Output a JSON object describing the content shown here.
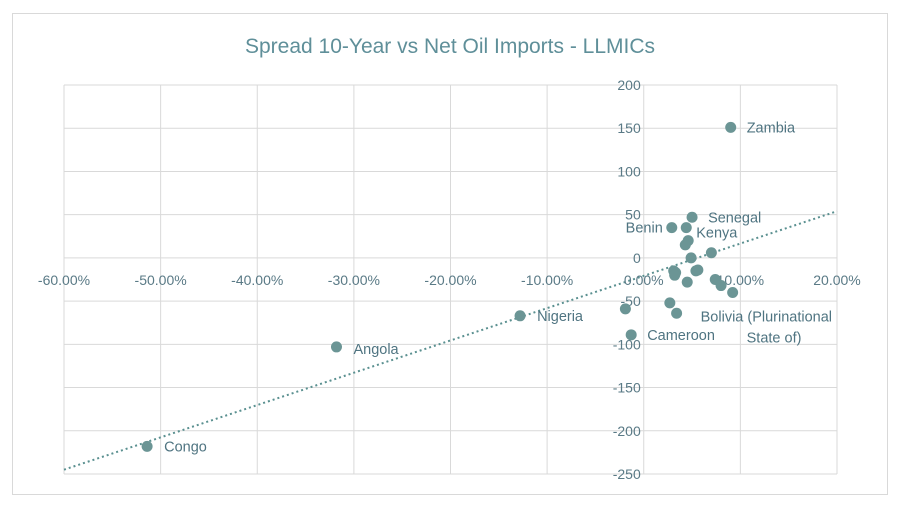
{
  "chart_data": {
    "type": "scatter",
    "title": "Spread 10-Year vs Net Oil Imports - LLMICs",
    "xlabel": "",
    "ylabel": "",
    "xlim": [
      -0.6,
      0.2
    ],
    "ylim": [
      -250,
      200
    ],
    "x_ticks": [
      -0.6,
      -0.5,
      -0.4,
      -0.3,
      -0.2,
      -0.1,
      0.0,
      0.1,
      0.2
    ],
    "x_tick_labels": [
      "-60.00%",
      "-50.00%",
      "-40.00%",
      "-30.00%",
      "-20.00%",
      "-10.00%",
      "0.00%",
      "10.00%",
      "20.00%"
    ],
    "y_ticks": [
      -250,
      -200,
      -150,
      -100,
      -50,
      0,
      50,
      100,
      150,
      200
    ],
    "y_tick_labels": [
      "-250",
      "-200",
      "-150",
      "-100",
      "-50",
      "0",
      "50",
      "100",
      "150",
      "200"
    ],
    "grid": true,
    "point_color": "#6b9595",
    "trendline": {
      "style": "dotted",
      "from": [
        -0.6,
        -245
      ],
      "to": [
        0.2,
        54
      ]
    },
    "points": [
      {
        "x": 0.09,
        "y": 151,
        "label": "Zambia"
      },
      {
        "x": 0.05,
        "y": 47,
        "label": "Senegal"
      },
      {
        "x": 0.029,
        "y": 35,
        "label": "Benin"
      },
      {
        "x": 0.044,
        "y": 35,
        "label": "Kenya"
      },
      {
        "x": 0.046,
        "y": 20,
        "label": ""
      },
      {
        "x": 0.043,
        "y": 15,
        "label": ""
      },
      {
        "x": 0.07,
        "y": 6,
        "label": ""
      },
      {
        "x": 0.049,
        "y": 0,
        "label": ""
      },
      {
        "x": 0.031,
        "y": -15,
        "label": ""
      },
      {
        "x": 0.033,
        "y": -17,
        "label": ""
      },
      {
        "x": 0.054,
        "y": -15,
        "label": ""
      },
      {
        "x": 0.056,
        "y": -14,
        "label": ""
      },
      {
        "x": 0.032,
        "y": -20,
        "label": ""
      },
      {
        "x": 0.045,
        "y": -28,
        "label": ""
      },
      {
        "x": 0.074,
        "y": -25,
        "label": ""
      },
      {
        "x": 0.08,
        "y": -32,
        "label": ""
      },
      {
        "x": 0.092,
        "y": -40,
        "label": "Bolivia (Plurinational State of)"
      },
      {
        "x": 0.027,
        "y": -52,
        "label": ""
      },
      {
        "x": 0.034,
        "y": -64,
        "label": ""
      },
      {
        "x": -0.019,
        "y": -59,
        "label": ""
      },
      {
        "x": -0.013,
        "y": -89,
        "label": "Cameroon"
      },
      {
        "x": -0.128,
        "y": -67,
        "label": "Nigeria"
      },
      {
        "x": -0.318,
        "y": -103,
        "label": "Angola"
      },
      {
        "x": -0.514,
        "y": -218,
        "label": "Congo"
      }
    ]
  }
}
